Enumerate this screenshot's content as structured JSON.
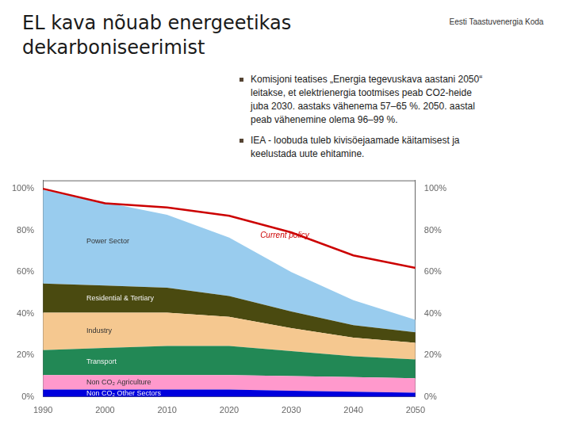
{
  "chart_data": {
    "type": "area",
    "stacked": true,
    "grid": false,
    "title": [
      "EL kava nõuab energeetikas",
      "dekarboniseerimist"
    ],
    "annotations": [
      {
        "text": [
          "Komisjoni teatises „Energia tegevuskava aastani 2050“",
          "leitakse, et elektrienergia tootmises peab CO2-heide",
          "juba 2030. aastaks vähenema 57–65 %. 2050. aastal",
          "peab vähenemine olema 96–99 %."
        ]
      },
      {
        "text": [
          "IEA - loobuda tuleb kivisöejaamade käitamisest ja",
          "keelustada uute ehitamine."
        ]
      },
      {
        "text": "Eesti Taastuvenergia Koda"
      }
    ],
    "x": [
      1990,
      2000,
      2010,
      2020,
      2030,
      2040,
      2050
    ],
    "series": [
      {
        "name": "Non CO₂ Other Sectors",
        "color": "#0000dd",
        "values": [
          3.5,
          3.5,
          3.5,
          3.5,
          3.0,
          2.5,
          2.0
        ]
      },
      {
        "name": "Non CO₂ Agriculture",
        "color": "#ff99cc",
        "values": [
          7.0,
          7.0,
          7.0,
          7.0,
          7.0,
          7.0,
          7.0
        ]
      },
      {
        "name": "Transport",
        "color": "#228855",
        "values": [
          12,
          13,
          14,
          14,
          12,
          10,
          9
        ]
      },
      {
        "name": "Industry",
        "color": "#f5c890",
        "values": [
          18,
          17,
          16,
          14,
          11,
          9,
          8
        ]
      },
      {
        "name": "Residential & Tertiary",
        "color": "#4a4a10",
        "values": [
          14,
          13,
          12,
          10,
          8,
          6,
          5
        ]
      },
      {
        "name": "Power Sector",
        "color": "#99ccee",
        "values": [
          45,
          40,
          35,
          28,
          19,
          12,
          6
        ]
      },
      {
        "name": "Current policy",
        "type": "line",
        "color": "#cc0000",
        "values": [
          100,
          93,
          91,
          87,
          79,
          68,
          62
        ]
      }
    ],
    "xlim": [
      1990,
      2050
    ],
    "xticks": [
      1990,
      2000,
      2010,
      2020,
      2030,
      2040,
      2050
    ],
    "ylim": [
      0,
      104
    ],
    "yticks": [
      {
        "value": 0,
        "label": "0%"
      },
      {
        "value": 20,
        "label": "20%"
      },
      {
        "value": 40,
        "label": "40%"
      },
      {
        "value": 60,
        "label": "60%"
      },
      {
        "value": 80,
        "label": "80%"
      },
      {
        "value": 100,
        "label": "100%"
      }
    ],
    "y2lim": [
      0,
      104
    ],
    "y2ticks": [
      {
        "value": 0,
        "label": "0%"
      },
      {
        "value": 20,
        "label": "20%"
      },
      {
        "value": 40,
        "label": "40%"
      },
      {
        "value": 60,
        "label": "60%"
      },
      {
        "value": 80,
        "label": "80%"
      },
      {
        "value": 100,
        "label": "100%"
      }
    ]
  }
}
